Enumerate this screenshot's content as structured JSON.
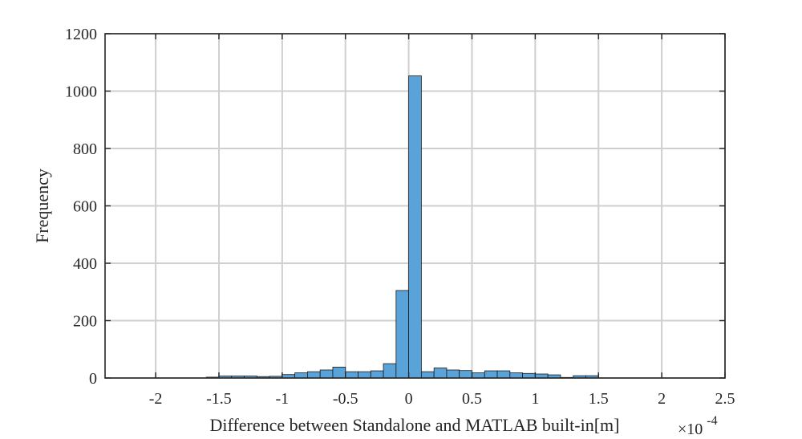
{
  "chart_data": {
    "type": "bar",
    "xlabel": "Difference between Standalone and MATLAB built-in[m]",
    "x_exponent_label": {
      "base": "×10",
      "exponent": "-4"
    },
    "ylabel": "Frequency",
    "xlim": [
      -2.4,
      2.5
    ],
    "ylim": [
      0,
      1200
    ],
    "xticks": [
      -2,
      -1.5,
      -1,
      -0.5,
      0,
      0.5,
      1,
      1.5,
      2,
      2.5
    ],
    "xtick_labels": [
      "-2",
      "-1.5",
      "-1",
      "-0.5",
      "0",
      "0.5",
      "1",
      "1.5",
      "2",
      "2.5"
    ],
    "yticks": [
      0,
      200,
      400,
      600,
      800,
      1000,
      1200
    ],
    "ytick_labels": [
      "0",
      "200",
      "400",
      "600",
      "800",
      "1000",
      "1200"
    ],
    "grid": true,
    "bar_color": "#5aa3d8",
    "bar_edge_color": "#1a1a1a",
    "bin_width": 0.1,
    "bin_left_edges": [
      -1.6,
      -1.5,
      -1.4,
      -1.3,
      -1.2,
      -1.1,
      -1.0,
      -0.9,
      -0.8,
      -0.7,
      -0.6,
      -0.5,
      -0.4,
      -0.3,
      -0.2,
      -0.1,
      0.0,
      0.1,
      0.2,
      0.3,
      0.4,
      0.5,
      0.6,
      0.7,
      0.8,
      0.9,
      1.0,
      1.1,
      1.2,
      1.3,
      1.4
    ],
    "values": [
      3,
      7,
      7,
      7,
      5,
      6,
      12,
      18,
      22,
      28,
      38,
      22,
      22,
      25,
      50,
      305,
      1053,
      22,
      35,
      28,
      26,
      18,
      25,
      25,
      18,
      16,
      14,
      11,
      2,
      8,
      8
    ]
  }
}
